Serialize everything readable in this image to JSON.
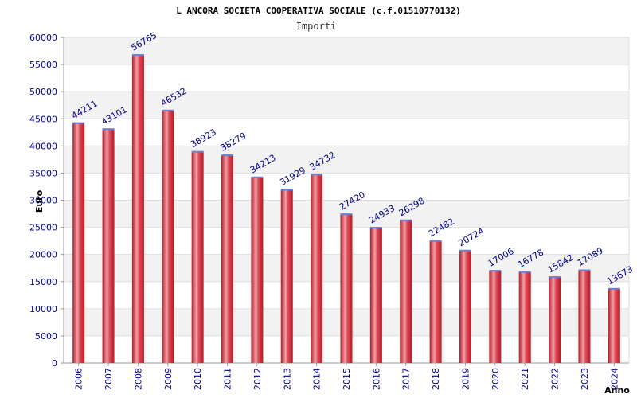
{
  "chart_data": {
    "type": "bar",
    "title": "L ANCORA SOCIETA COOPERATIVA SOCIALE (c.f.01510770132)",
    "subtitle": "Importi",
    "xlabel": "Anno",
    "ylabel": "Euro",
    "ylim": [
      0,
      60000
    ],
    "yticks": [
      0,
      5000,
      10000,
      15000,
      20000,
      25000,
      30000,
      35000,
      40000,
      45000,
      50000,
      55000,
      60000
    ],
    "categories": [
      "2006",
      "2007",
      "2008",
      "2009",
      "2010",
      "2011",
      "2012",
      "2013",
      "2014",
      "2015",
      "2016",
      "2017",
      "2018",
      "2019",
      "2020",
      "2021",
      "2022",
      "2023",
      "2024"
    ],
    "values": [
      44211,
      43101,
      56765,
      46532,
      38923,
      38279,
      34213,
      31929,
      34732,
      27420,
      24933,
      26298,
      22482,
      20724,
      17006,
      16778,
      15842,
      17089,
      13673
    ],
    "grid": true,
    "colors": {
      "bar_edge": "#b01c2a",
      "bar_mid": "#f2a0a8",
      "bar_main": "#dc3545",
      "bar_top": "#6a7fd0",
      "band": "#f2f2f2",
      "text": "#00008b",
      "axis": "#999999"
    }
  }
}
